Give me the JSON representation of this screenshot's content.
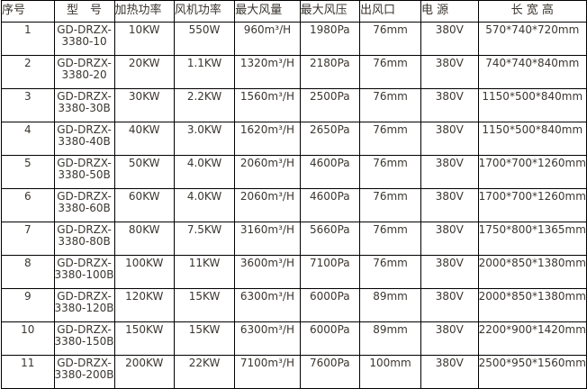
{
  "table": {
    "headers": [
      "序号",
      "型　号",
      "加热功率",
      "风机功率",
      "最大风量",
      "最大风压",
      "出风口",
      "电 源",
      "长 宽 高"
    ],
    "rows": [
      [
        "1",
        "GD-DRZX-\n3380-10",
        "10KW",
        "550W",
        "960m³/H",
        "1980Pa",
        "76mm",
        "380V",
        "570*740*720mm"
      ],
      [
        "2",
        "GD-DRZX-\n3380-20",
        "20KW",
        "1.1KW",
        "1320m³/H",
        "2180Pa",
        "76mm",
        "380V",
        "740*740*840mm"
      ],
      [
        "3",
        "GD-DRZX-\n3380-30B",
        "30KW",
        "2.2KW",
        "1560m³/H",
        "2500Pa",
        "76mm",
        "380V",
        "1150*500*840mm"
      ],
      [
        "4",
        "GD-DRZX-\n3380-40B",
        "40KW",
        "3.0KW",
        "1620m³/H",
        "2650Pa",
        "76mm",
        "380V",
        "1150*500*840mm"
      ],
      [
        "5",
        "GD-DRZX-\n3380-50B",
        "50KW",
        "4.0KW",
        "2060m³/H",
        "4600Pa",
        "76mm",
        "380V",
        "1700*700*1260mm"
      ],
      [
        "6",
        "GD-DRZX-\n3380-60B",
        "60KW",
        "4.0KW",
        "2060m³/H",
        "4600Pa",
        "76mm",
        "380V",
        "1700*700*1260mm"
      ],
      [
        "7",
        "GD-DRZX-\n3380-80B",
        "80KW",
        "7.5KW",
        "3160m³/H",
        "5660Pa",
        "76mm",
        "380V",
        "1750*800*1365mm"
      ],
      [
        "8",
        "GD-DRZX-\n3380-100B",
        "100KW",
        "11KW",
        "3600m³/H",
        "7100Pa",
        "76mm",
        "380V",
        "2000*850*1380mm"
      ],
      [
        "9",
        "GD-DRZX-\n3380-120B",
        "120KW",
        "15KW",
        "6300m³/H",
        "6000Pa",
        "89mm",
        "380V",
        "2000*850*1380mm"
      ],
      [
        "10",
        "GD-DRZX-\n3380-150B",
        "150KW",
        "15KW",
        "6300m³/H",
        "6000Pa",
        "89mm",
        "380V",
        "2200*900*1420mm"
      ],
      [
        "11",
        "GD-DRZX-\n3380-200B",
        "200KW",
        "22KW",
        "7100m³/H",
        "7600Pa",
        "100mm",
        "380V",
        "2500*950*1560mm"
      ]
    ]
  }
}
